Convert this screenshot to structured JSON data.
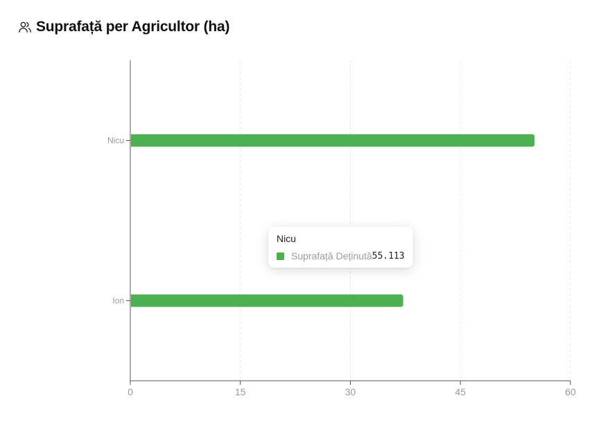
{
  "header": {
    "icon": "users-icon",
    "title": "Suprafață per Agricultor (ha)"
  },
  "colors": {
    "bar": "#4caf50",
    "axis": "#555555",
    "grid": "#e6e6e6",
    "tick_text": "#999999"
  },
  "chart_data": {
    "type": "bar",
    "orientation": "horizontal",
    "categories": [
      "Nicu",
      "Ion"
    ],
    "series": [
      {
        "name": "Suprafață Deținută",
        "values": [
          55.113,
          37.2
        ]
      }
    ],
    "xlim": [
      0,
      60
    ],
    "xticks": [
      "0",
      "15",
      "30",
      "45",
      "60"
    ],
    "grid": true,
    "grid_style": "dashed-vertical"
  },
  "tooltip": {
    "title": "Nicu",
    "label": "Suprafață Deținută",
    "value": "55.113"
  }
}
